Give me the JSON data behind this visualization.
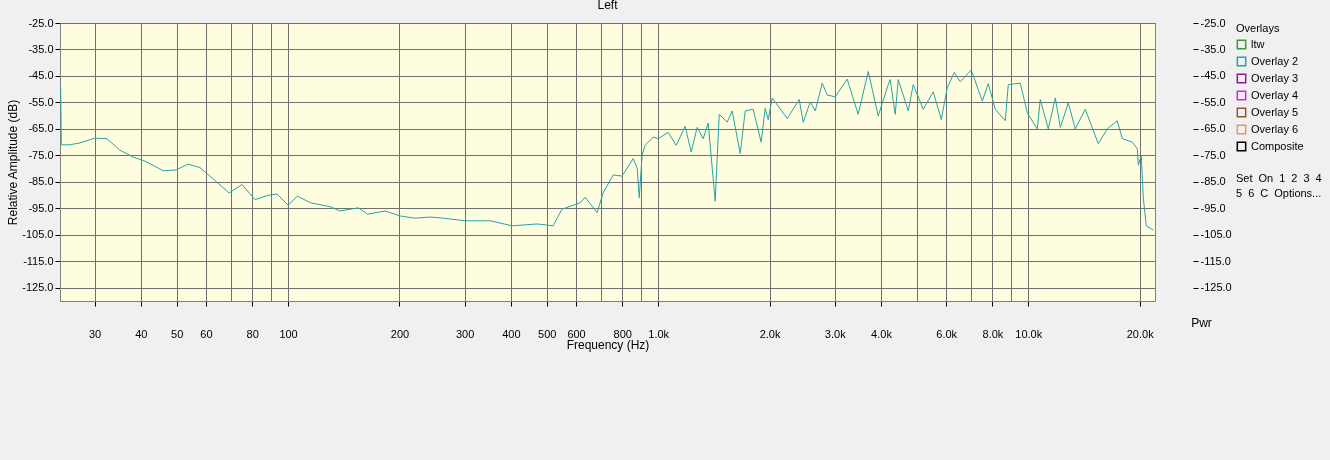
{
  "chart_data": {
    "type": "line",
    "title": "Left",
    "xlabel": "Frequency (Hz)",
    "ylabel": "Relative Amplitude (dB)",
    "y2label": "Pwr",
    "legend_title": "Overlays",
    "legend": "right",
    "grid": true,
    "log": "x",
    "xlim": [
      24.2,
      22000
    ],
    "ylim": [
      -130,
      -25
    ],
    "y2lim": [
      -130,
      -25
    ],
    "xticks": [
      30,
      40,
      50,
      60,
      {
        "value": 70,
        "label": null
      },
      80,
      {
        "value": 90,
        "label": null
      },
      100,
      200,
      300,
      400,
      500,
      600,
      {
        "value": 700,
        "label": null
      },
      800,
      {
        "value": 900,
        "label": null
      },
      {
        "value": 1000,
        "label": "1.0k"
      },
      {
        "value": 2000,
        "label": "2.0k"
      },
      {
        "value": 3000,
        "label": "3.0k"
      },
      {
        "value": 4000,
        "label": "4.0k"
      },
      {
        "value": 5000,
        "label": null
      },
      {
        "value": 6000,
        "label": "6.0k"
      },
      {
        "value": 7000,
        "label": null
      },
      {
        "value": 8000,
        "label": "8.0k"
      },
      {
        "value": 9000,
        "label": null
      },
      {
        "value": 10000,
        "label": "10.0k"
      },
      {
        "value": 20000,
        "label": "20.0k"
      }
    ],
    "yticks": [
      {
        "value": -25,
        "label": "-25.0"
      },
      {
        "value": -35,
        "label": "-35.0"
      },
      {
        "value": -45,
        "label": "-45.0"
      },
      {
        "value": -55,
        "label": "-55.0"
      },
      {
        "value": -65,
        "label": "-65.0"
      },
      {
        "value": -75,
        "label": "-75.0"
      },
      {
        "value": -85,
        "label": "-85.0"
      },
      {
        "value": -95,
        "label": "-95.0"
      },
      {
        "value": -105,
        "label": "-105.0"
      },
      {
        "value": -115,
        "label": "-115.0"
      },
      {
        "value": -125,
        "label": "-125.0"
      }
    ],
    "y2ticks": [
      {
        "value": -25,
        "label": "-25.0"
      },
      {
        "value": -35,
        "label": "-35.0"
      },
      {
        "value": -45,
        "label": "-45.0"
      },
      {
        "value": -55,
        "label": "-55.0"
      },
      {
        "value": -65,
        "label": "-65.0"
      },
      {
        "value": -75,
        "label": "-75.0"
      },
      {
        "value": -85,
        "label": "-85.0"
      },
      {
        "value": -95,
        "label": "-95.0"
      },
      {
        "value": -105,
        "label": "-105.0"
      },
      {
        "value": -115,
        "label": "-115.0"
      },
      {
        "value": -125,
        "label": "-125.0"
      }
    ],
    "annotations": [
      "Set",
      "On",
      "1",
      "2",
      "3",
      "4",
      "5",
      "6",
      "C",
      "Options..."
    ],
    "series": [
      {
        "name": "ltw",
        "color": "#3a9a3a"
      },
      {
        "name": "Overlay 2",
        "color": "#26a3a8",
        "x": [
          24.3,
          24.4,
          25.7,
          27.4,
          30,
          32.4,
          35.1,
          38.1,
          41.1,
          46,
          49.8,
          53.7,
          57.8,
          64.7,
          69.3,
          75.1,
          81.4,
          88.3,
          93.4,
          100,
          106,
          115,
          130,
          138,
          155,
          164,
          183,
          201,
          220,
          242,
          258,
          301,
          352,
          403,
          471,
          520,
          550,
          616,
          635,
          684,
          710,
          756,
          799,
          856,
          878,
          889,
          905,
          922,
          969,
          1000,
          1064,
          1119,
          1183,
          1228,
          1275,
          1323,
          1365,
          1426,
          1462,
          1537,
          1585,
          1666,
          1719,
          1806,
          1898,
          1946,
          1983,
          2033,
          2232,
          2405,
          2466,
          2576,
          2657,
          2775,
          2863,
          3009,
          3242,
          3471,
          3695,
          3932,
          4184,
          4237,
          4371,
          4453,
          4740,
          4889,
          5202,
          5536,
          5821,
          6040,
          6310,
          6549,
          7015,
          7511,
          7796,
          8144,
          8666,
          8830,
          9515,
          9938,
          10576,
          10775,
          11327,
          11832,
          12207,
          12830,
          13397,
          14260,
          15460,
          16352,
          17397,
          17950,
          19104,
          19707,
          19830,
          20202,
          20454,
          20840,
          21766
        ],
        "values": [
          -49,
          -71,
          -71,
          -70.3,
          -68.5,
          -68.7,
          -73,
          -75.6,
          -77.2,
          -80.8,
          -80.5,
          -78.3,
          -79.6,
          -85.5,
          -89.2,
          -86,
          -91.7,
          -90.1,
          -89.6,
          -93.8,
          -90.4,
          -92.9,
          -94.4,
          -96,
          -94.8,
          -97.2,
          -96,
          -97.9,
          -98.7,
          -98.3,
          -98.6,
          -99.7,
          -99.7,
          -101.6,
          -100.9,
          -101.6,
          -95.3,
          -92.9,
          -90.8,
          -96.6,
          -89.2,
          -82.4,
          -82.8,
          -76.2,
          -79.9,
          -91,
          -74.9,
          -71.2,
          -68.1,
          -68.7,
          -66.3,
          -71.2,
          -64,
          -73.7,
          -64.4,
          -68.7,
          -62.8,
          -92.3,
          -59.5,
          -62.4,
          -58.2,
          -74.3,
          -58.2,
          -57.6,
          -70,
          -57.3,
          -61.5,
          -53.3,
          -61.1,
          -53.9,
          -62.5,
          -54.8,
          -58.2,
          -47.7,
          -52.2,
          -52.9,
          -46.2,
          -59.5,
          -43.3,
          -60.1,
          -48.3,
          -46.4,
          -59.5,
          -46.4,
          -58.2,
          -48.3,
          -57.6,
          -51,
          -61.5,
          -49.5,
          -43.7,
          -47.2,
          -42.7,
          -54.5,
          -47.9,
          -57.6,
          -61.9,
          -48.3,
          -47.7,
          -58.9,
          -65,
          -53.9,
          -65,
          -53.3,
          -64.4,
          -55.2,
          -65,
          -57.6,
          -70.6,
          -65,
          -61.9,
          -68.7,
          -70,
          -72.5,
          -78.7,
          -75,
          -91,
          -101.6,
          -103.2
        ]
      },
      {
        "name": "Overlay 3",
        "color": "#8e1a8e"
      },
      {
        "name": "Overlay 4",
        "color": "#e020e0"
      },
      {
        "name": "Overlay 5",
        "color": "#8b5a2b"
      },
      {
        "name": "Overlay 6",
        "color": "#e8956a"
      },
      {
        "name": "Composite",
        "color": "#000000"
      }
    ]
  }
}
